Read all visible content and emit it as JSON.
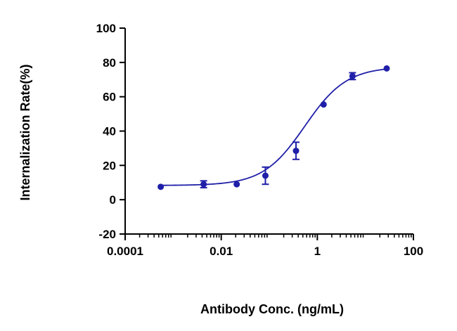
{
  "chart_data": {
    "type": "scatter",
    "title": "",
    "xlabel": "Antibody Conc. (ng/mL)",
    "ylabel": "Internalization Rate(%)",
    "xscale": "log",
    "xlim": [
      0.0001,
      100
    ],
    "ylim": [
      -20,
      100
    ],
    "xticks": [
      0.0001,
      0.01,
      1,
      100
    ],
    "xtick_labels": [
      "0.0001",
      "0.01",
      "1",
      "100"
    ],
    "yticks": [
      -20,
      0,
      20,
      40,
      60,
      80,
      100
    ],
    "ytick_labels": [
      "-20",
      "0",
      "20",
      "40",
      "60",
      "80",
      "100"
    ],
    "grid": false,
    "legend": "none",
    "color": "#1f1fa8",
    "series": [
      {
        "x": [
          0.00055,
          0.0043,
          0.021,
          0.083,
          0.36,
          1.35,
          5.4,
          27.8
        ],
        "y": [
          7.5,
          9.0,
          9.0,
          14.0,
          28.5,
          55.5,
          72.0,
          76.5
        ],
        "error": [
          0,
          2.0,
          0,
          5.0,
          5.0,
          0,
          2.0,
          0
        ]
      }
    ],
    "fit_curve": {
      "model": "4PL",
      "bottom": 8.3,
      "top": 77.5,
      "ec50": 0.55,
      "hill": 1.0
    }
  }
}
